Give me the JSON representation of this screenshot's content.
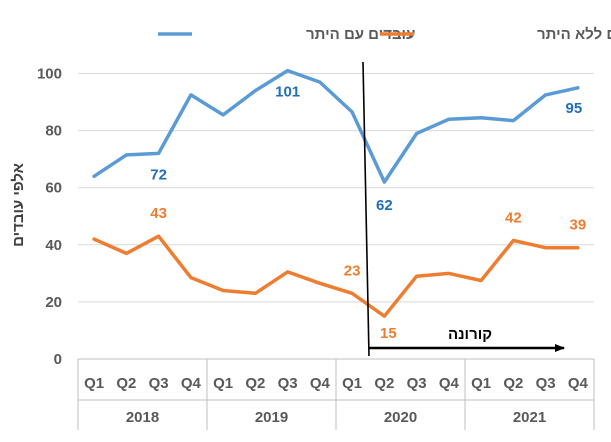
{
  "chart_data": {
    "type": "line",
    "ylabel": "אלפי עובדים",
    "ylim": [
      0,
      110
    ],
    "yticks": [
      0,
      20,
      40,
      60,
      80,
      100
    ],
    "grid": true,
    "legend_position": "top",
    "categories": [
      "Q1",
      "Q2",
      "Q3",
      "Q4",
      "Q1",
      "Q2",
      "Q3",
      "Q4",
      "Q1",
      "Q2",
      "Q3",
      "Q4",
      "Q1",
      "Q2",
      "Q3",
      "Q4"
    ],
    "years": [
      "2018",
      "2019",
      "2020",
      "2021"
    ],
    "series": [
      {
        "name": "עובדים עם היתר",
        "color": "#5b9bd5",
        "label_color": "#1f6fb8",
        "values": [
          64,
          71.5,
          72,
          92.5,
          85.5,
          94,
          101,
          97,
          86.5,
          62,
          79,
          84,
          84.5,
          83.5,
          92.5,
          95
        ],
        "data_labels": [
          {
            "index": 2,
            "text": "72"
          },
          {
            "index": 6,
            "text": "101"
          },
          {
            "index": 9,
            "text": "62"
          },
          {
            "index": 15,
            "text": "95"
          }
        ]
      },
      {
        "name": "עובדים ללא היתר",
        "color": "#ed7d31",
        "label_color": "#ed7d31",
        "values": [
          42,
          37,
          43,
          28.5,
          24,
          23,
          30.5,
          26.5,
          23,
          15,
          29,
          30,
          27.5,
          41.5,
          39,
          39
        ],
        "data_labels": [
          {
            "index": 2,
            "text": "43"
          },
          {
            "index": 8,
            "text": "23"
          },
          {
            "index": 9,
            "text": "15"
          },
          {
            "index": 13,
            "text": "42"
          },
          {
            "index": 15,
            "text": "39"
          }
        ]
      }
    ],
    "annotation": {
      "text": "קורונה",
      "arrow_from_index": 8.5,
      "arrow_to_index": 15.5
    }
  }
}
